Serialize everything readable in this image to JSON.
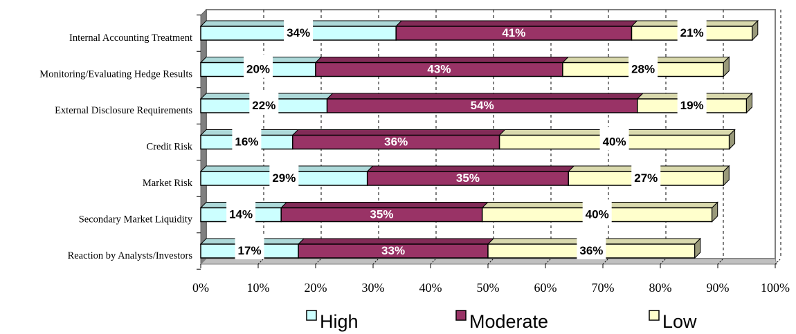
{
  "chart_data": {
    "type": "bar",
    "orientation": "horizontal",
    "stacked": true,
    "three_d": true,
    "categories": [
      "Internal Accounting Treatment",
      "Monitoring/Evaluating Hedge Results",
      "External Disclosure Requirements",
      "Credit Risk",
      "Market Risk",
      "Secondary Market Liquidity",
      "Reaction by Analysts/Investors"
    ],
    "series": [
      {
        "name": "High",
        "color": "#ccffff",
        "label_color": "#000000",
        "values": [
          34,
          20,
          22,
          16,
          29,
          14,
          17
        ],
        "labels": [
          "34%",
          "20%",
          "22%",
          "16%",
          "29%",
          "14%",
          "17%"
        ]
      },
      {
        "name": "Moderate",
        "color": "#993366",
        "label_color": "#ffffff",
        "values": [
          41,
          43,
          54,
          36,
          35,
          35,
          33
        ],
        "labels": [
          "41%",
          "43%",
          "54%",
          "36%",
          "35%",
          "35%",
          "33%"
        ]
      },
      {
        "name": "Low",
        "color": "#ffffcc",
        "label_color": "#000000",
        "values": [
          21,
          28,
          19,
          40,
          27,
          40,
          36
        ],
        "labels": [
          "21%",
          "28%",
          "19%",
          "40%",
          "27%",
          "40%",
          "36%"
        ]
      }
    ],
    "xlim": [
      0,
      100
    ],
    "x_ticks": [
      "0%",
      "10%",
      "20%",
      "30%",
      "40%",
      "50%",
      "60%",
      "70%",
      "80%",
      "90%",
      "100%"
    ],
    "grid": true,
    "legend_position": "bottom",
    "wall_color": "#808080",
    "label_box_color": "#ffffff"
  }
}
